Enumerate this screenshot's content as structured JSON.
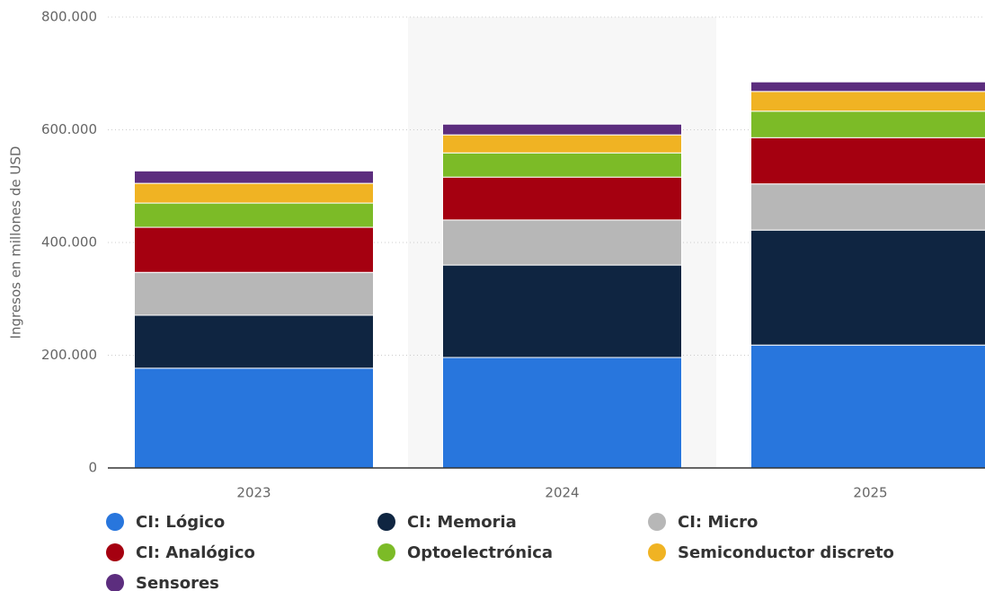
{
  "chart_data": {
    "type": "stacked_bar",
    "y_label": "Ingresos en millones de USD",
    "categories": [
      "2023",
      "2024",
      "2025"
    ],
    "series": [
      {
        "name": "CI: Lógico",
        "color": "#2876dd",
        "values": [
          177000,
          196000,
          218000
        ]
      },
      {
        "name": "CI: Memoria",
        "color": "#0f2541",
        "values": [
          94000,
          164000,
          204000
        ]
      },
      {
        "name": "CI: Micro",
        "color": "#b7b7b7",
        "values": [
          76000,
          80000,
          82000
        ]
      },
      {
        "name": "CI: Analógico",
        "color": "#a50010",
        "values": [
          80000,
          76000,
          82000
        ]
      },
      {
        "name": "Optoelectrónica",
        "color": "#7cbb27",
        "values": [
          43000,
          43000,
          47000
        ]
      },
      {
        "name": "Semiconductor discreto",
        "color": "#f0b323",
        "values": [
          35000,
          32000,
          35000
        ]
      },
      {
        "name": "Sensores",
        "color": "#5c2d7e",
        "values": [
          22000,
          19000,
          17000
        ]
      }
    ],
    "ylim": [
      0,
      800000
    ],
    "yticks": [
      0,
      {
        "value": 200000,
        "label": "200.000"
      },
      {
        "value": 400000,
        "label": "400.000"
      },
      {
        "value": 600000,
        "label": "600.000"
      },
      {
        "value": 800000,
        "label": "800.000"
      }
    ],
    "grid": true
  }
}
